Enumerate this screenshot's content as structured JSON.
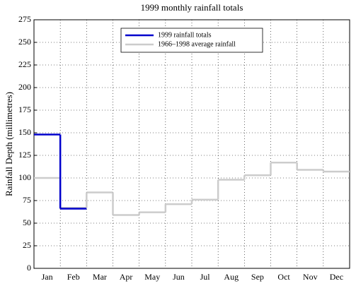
{
  "chart_data": {
    "type": "line",
    "step": true,
    "title": "1999 monthly rainfall totals",
    "ylabel": "Rainfall Depth (millimetres)",
    "categories": [
      "Jan",
      "Feb",
      "Mar",
      "Apr",
      "May",
      "Jun",
      "Jul",
      "Aug",
      "Sep",
      "Oct",
      "Nov",
      "Dec"
    ],
    "series": [
      {
        "name": "1999 rainfall totals",
        "color": "#0000cc",
        "values": [
          148,
          66,
          null,
          null,
          null,
          null,
          null,
          null,
          null,
          null,
          null,
          null
        ]
      },
      {
        "name": "1966–1998 average rainfall",
        "color": "#cccccc",
        "values": [
          100,
          67,
          84,
          59,
          62,
          71,
          76,
          98,
          103,
          117,
          109,
          107
        ]
      }
    ],
    "ylim": [
      0,
      275
    ],
    "yticks": [
      0,
      25,
      50,
      75,
      100,
      125,
      150,
      175,
      200,
      225,
      250,
      275
    ],
    "grid": true,
    "legend": "upper center"
  }
}
